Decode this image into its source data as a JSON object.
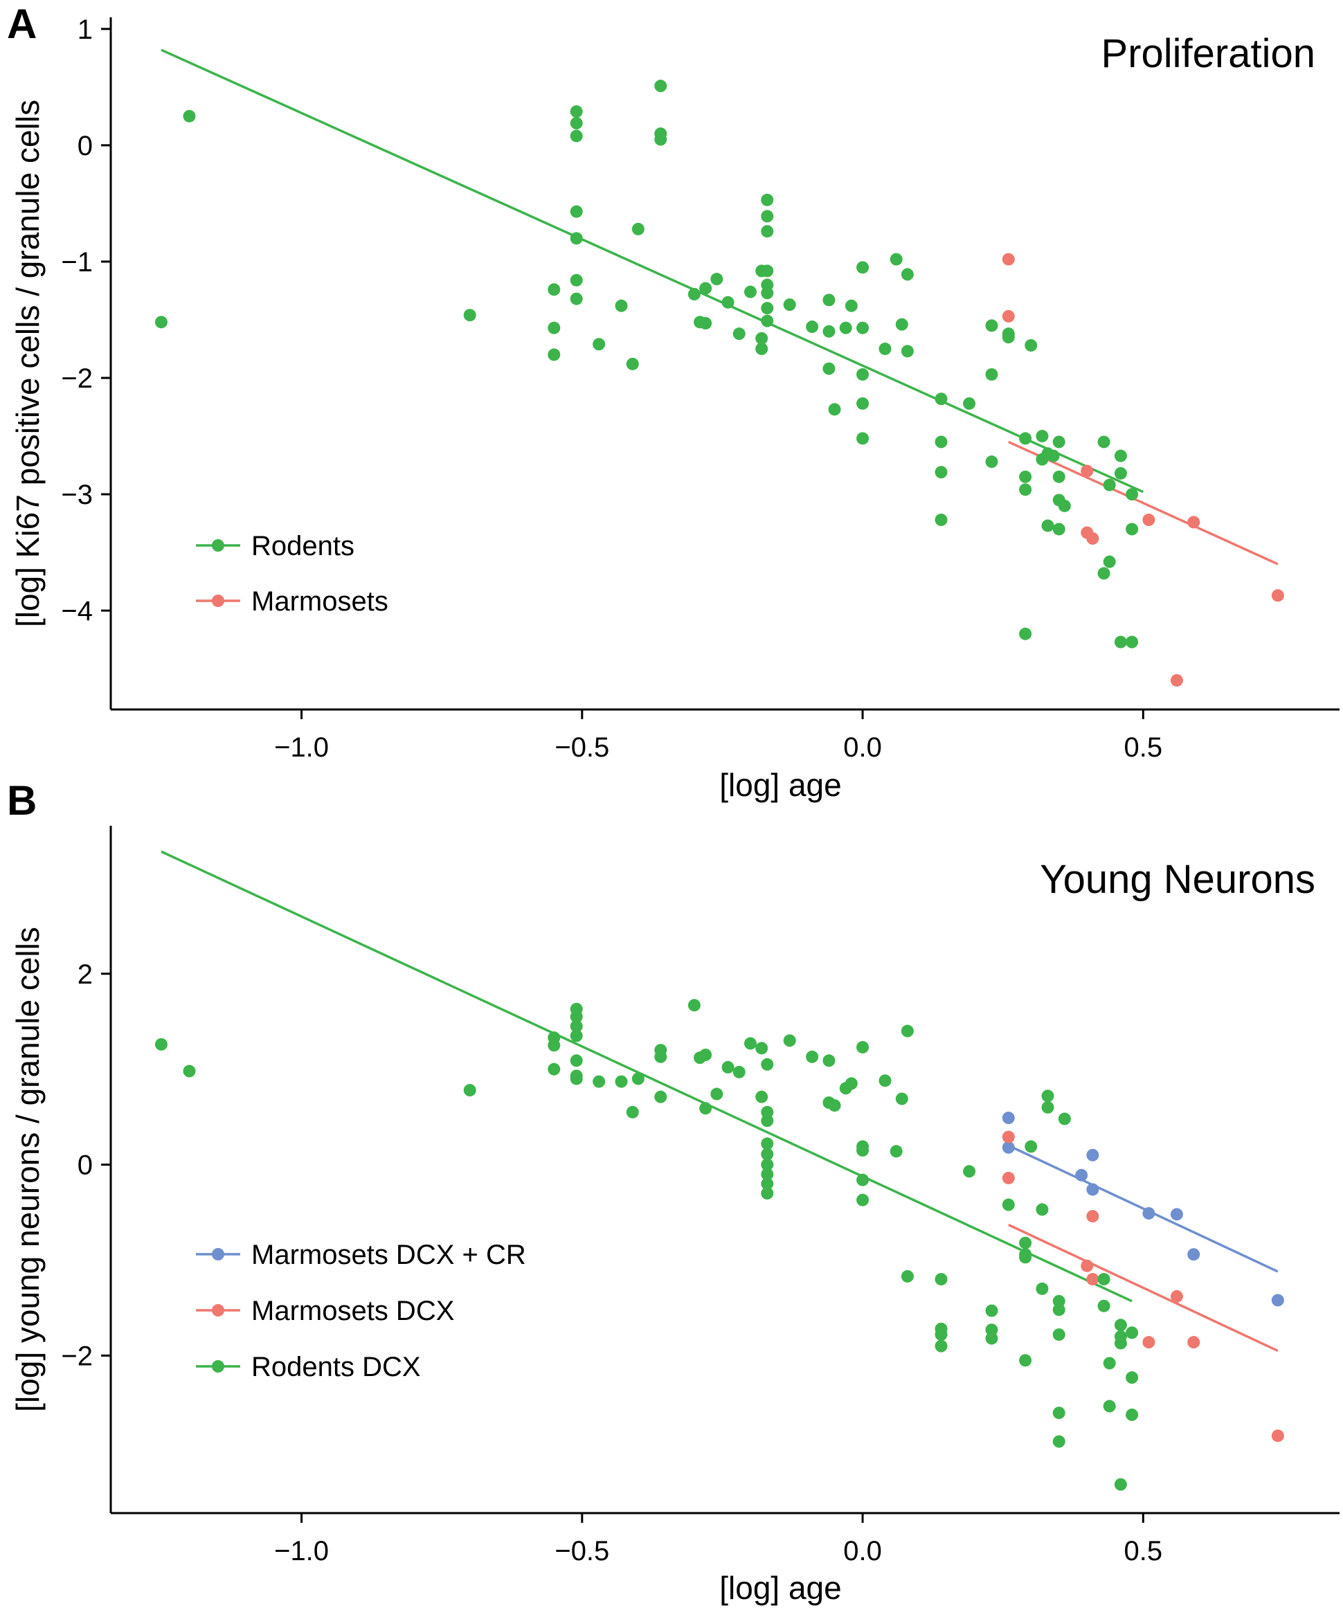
{
  "colors": {
    "rodents": "#3cb44b",
    "marmosets": "#ef776e",
    "marmosets_cr": "#6f8fcf",
    "axis": "#000000"
  },
  "chart_data": [
    {
      "type": "scatter",
      "panel_letter": "A",
      "title": "Proliferation",
      "xlabel": "[log] age",
      "ylabel": "[log] Ki67 positive cells / granule cells",
      "xlim": [
        -1.34,
        0.85
      ],
      "ylim": [
        -4.85,
        1.1
      ],
      "xticks": [
        -1.0,
        -0.5,
        0.0,
        0.5
      ],
      "xtick_labels": [
        "−1.0",
        "−0.5",
        "0.0",
        "0.5"
      ],
      "yticks": [
        1,
        0,
        -1,
        -2,
        -3,
        -4
      ],
      "ytick_labels": [
        "1",
        "0",
        "−1",
        "−2",
        "−3",
        "−4"
      ],
      "legend_position": "bottom-left",
      "series": [
        {
          "name": "Rodents",
          "color": "#3cb44b",
          "fit": {
            "x": [
              -1.25,
              0.5
            ],
            "y": [
              0.82,
              -2.98
            ]
          },
          "points": [
            [
              -1.25,
              -1.52
            ],
            [
              -1.2,
              0.25
            ],
            [
              -0.7,
              -1.46
            ],
            [
              -0.55,
              -1.24
            ],
            [
              -0.55,
              -1.57
            ],
            [
              -0.55,
              -1.8
            ],
            [
              -0.51,
              0.29
            ],
            [
              -0.51,
              0.19
            ],
            [
              -0.51,
              0.08
            ],
            [
              -0.51,
              -0.57
            ],
            [
              -0.51,
              -0.8
            ],
            [
              -0.51,
              -1.16
            ],
            [
              -0.51,
              -1.32
            ],
            [
              -0.47,
              -1.71
            ],
            [
              -0.43,
              -1.38
            ],
            [
              -0.41,
              -1.88
            ],
            [
              -0.4,
              -0.72
            ],
            [
              -0.36,
              0.51
            ],
            [
              -0.36,
              0.1
            ],
            [
              -0.36,
              0.05
            ],
            [
              -0.3,
              -1.28
            ],
            [
              -0.29,
              -1.52
            ],
            [
              -0.28,
              -1.53
            ],
            [
              -0.28,
              -1.23
            ],
            [
              -0.26,
              -1.15
            ],
            [
              -0.24,
              -1.35
            ],
            [
              -0.22,
              -1.62
            ],
            [
              -0.2,
              -1.26
            ],
            [
              -0.18,
              -1.08
            ],
            [
              -0.18,
              -1.66
            ],
            [
              -0.18,
              -1.75
            ],
            [
              -0.17,
              -0.47
            ],
            [
              -0.17,
              -0.61
            ],
            [
              -0.17,
              -0.74
            ],
            [
              -0.17,
              -1.08
            ],
            [
              -0.17,
              -1.2
            ],
            [
              -0.17,
              -1.27
            ],
            [
              -0.17,
              -1.4
            ],
            [
              -0.17,
              -1.51
            ],
            [
              -0.13,
              -1.37
            ],
            [
              -0.09,
              -1.56
            ],
            [
              -0.06,
              -1.33
            ],
            [
              -0.06,
              -1.6
            ],
            [
              -0.06,
              -1.92
            ],
            [
              -0.05,
              -2.27
            ],
            [
              -0.03,
              -1.57
            ],
            [
              -0.02,
              -1.38
            ],
            [
              0.0,
              -1.05
            ],
            [
              0.0,
              -1.57
            ],
            [
              0.0,
              -1.97
            ],
            [
              0.0,
              -2.22
            ],
            [
              0.0,
              -2.52
            ],
            [
              0.04,
              -1.75
            ],
            [
              0.06,
              -0.98
            ],
            [
              0.07,
              -1.54
            ],
            [
              0.08,
              -1.77
            ],
            [
              0.08,
              -1.11
            ],
            [
              0.14,
              -2.18
            ],
            [
              0.14,
              -2.55
            ],
            [
              0.14,
              -2.81
            ],
            [
              0.14,
              -3.22
            ],
            [
              0.19,
              -2.22
            ],
            [
              0.23,
              -1.55
            ],
            [
              0.23,
              -1.97
            ],
            [
              0.23,
              -2.72
            ],
            [
              0.26,
              -1.62
            ],
            [
              0.26,
              -1.65
            ],
            [
              0.29,
              -2.52
            ],
            [
              0.29,
              -2.85
            ],
            [
              0.29,
              -2.96
            ],
            [
              0.29,
              -4.2
            ],
            [
              0.3,
              -1.72
            ],
            [
              0.32,
              -2.5
            ],
            [
              0.32,
              -2.7
            ],
            [
              0.33,
              -3.27
            ],
            [
              0.33,
              -2.65
            ],
            [
              0.34,
              -2.67
            ],
            [
              0.35,
              -2.55
            ],
            [
              0.35,
              -2.85
            ],
            [
              0.35,
              -3.05
            ],
            [
              0.35,
              -3.3
            ],
            [
              0.36,
              -3.1
            ],
            [
              0.43,
              -2.55
            ],
            [
              0.43,
              -3.68
            ],
            [
              0.44,
              -3.58
            ],
            [
              0.44,
              -2.92
            ],
            [
              0.46,
              -2.67
            ],
            [
              0.46,
              -2.82
            ],
            [
              0.46,
              -4.27
            ],
            [
              0.48,
              -3.0
            ],
            [
              0.48,
              -3.3
            ],
            [
              0.48,
              -4.27
            ]
          ]
        },
        {
          "name": "Marmosets",
          "color": "#ef776e",
          "fit": {
            "x": [
              0.26,
              0.74
            ],
            "y": [
              -2.55,
              -3.6
            ]
          },
          "points": [
            [
              0.26,
              -0.98
            ],
            [
              0.26,
              -1.47
            ],
            [
              0.4,
              -2.8
            ],
            [
              0.4,
              -3.33
            ],
            [
              0.41,
              -3.38
            ],
            [
              0.51,
              -3.22
            ],
            [
              0.59,
              -3.24
            ],
            [
              0.56,
              -4.6
            ],
            [
              0.74,
              -3.87
            ]
          ]
        }
      ]
    },
    {
      "type": "scatter",
      "panel_letter": "B",
      "title": "Young Neurons",
      "xlabel": "[log] age",
      "ylabel": "[log] young neurons / granule cells",
      "xlim": [
        -1.34,
        0.85
      ],
      "ylim": [
        -3.65,
        3.55
      ],
      "xticks": [
        -1.0,
        -0.5,
        0.0,
        0.5
      ],
      "xtick_labels": [
        "−1.0",
        "−0.5",
        "0.0",
        "0.5"
      ],
      "yticks": [
        2,
        0,
        -2
      ],
      "ytick_labels": [
        "2",
        "0",
        "−2"
      ],
      "legend_position": "bottom-left",
      "series": [
        {
          "name": "Marmosets DCX + CR",
          "color": "#6f8fcf",
          "fit": {
            "x": [
              0.26,
              0.74
            ],
            "y": [
              0.2,
              -1.12
            ]
          },
          "points": [
            [
              0.26,
              0.49
            ],
            [
              0.26,
              0.18
            ],
            [
              0.39,
              -0.11
            ],
            [
              0.41,
              0.1
            ],
            [
              0.41,
              -0.26
            ],
            [
              0.51,
              -0.51
            ],
            [
              0.56,
              -0.52
            ],
            [
              0.59,
              -0.94
            ],
            [
              0.74,
              -1.42
            ]
          ]
        },
        {
          "name": "Marmosets DCX",
          "color": "#ef776e",
          "fit": {
            "x": [
              0.26,
              0.74
            ],
            "y": [
              -0.63,
              -1.95
            ]
          },
          "points": [
            [
              0.26,
              0.29
            ],
            [
              0.26,
              -0.14
            ],
            [
              0.4,
              -1.06
            ],
            [
              0.41,
              -1.2
            ],
            [
              0.41,
              -0.54
            ],
            [
              0.51,
              -1.86
            ],
            [
              0.56,
              -1.38
            ],
            [
              0.59,
              -1.86
            ],
            [
              0.74,
              -2.84
            ]
          ]
        },
        {
          "name": "Rodents DCX",
          "color": "#3cb44b",
          "fit": {
            "x": [
              -1.25,
              0.48
            ],
            "y": [
              3.28,
              -1.43
            ]
          },
          "points": [
            [
              -1.25,
              1.26
            ],
            [
              -1.2,
              0.98
            ],
            [
              -0.7,
              0.78
            ],
            [
              -0.55,
              1.33
            ],
            [
              -0.55,
              1.25
            ],
            [
              -0.55,
              1.0
            ],
            [
              -0.51,
              1.63
            ],
            [
              -0.51,
              1.55
            ],
            [
              -0.51,
              1.45
            ],
            [
              -0.51,
              1.35
            ],
            [
              -0.51,
              1.09
            ],
            [
              -0.51,
              0.93
            ],
            [
              -0.51,
              0.9
            ],
            [
              -0.47,
              0.87
            ],
            [
              -0.43,
              0.87
            ],
            [
              -0.41,
              0.55
            ],
            [
              -0.4,
              0.9
            ],
            [
              -0.36,
              1.2
            ],
            [
              -0.36,
              1.13
            ],
            [
              -0.36,
              0.71
            ],
            [
              -0.3,
              1.67
            ],
            [
              -0.29,
              1.12
            ],
            [
              -0.28,
              1.15
            ],
            [
              -0.28,
              0.59
            ],
            [
              -0.26,
              0.74
            ],
            [
              -0.24,
              1.02
            ],
            [
              -0.22,
              0.97
            ],
            [
              -0.2,
              1.27
            ],
            [
              -0.18,
              1.22
            ],
            [
              -0.18,
              0.71
            ],
            [
              -0.17,
              0.55
            ],
            [
              -0.17,
              0.46
            ],
            [
              -0.17,
              0.22
            ],
            [
              -0.17,
              0.11
            ],
            [
              -0.17,
              0.0
            ],
            [
              -0.17,
              -0.1
            ],
            [
              -0.17,
              -0.2
            ],
            [
              -0.17,
              -0.3
            ],
            [
              -0.17,
              1.05
            ],
            [
              -0.13,
              1.3
            ],
            [
              -0.09,
              1.13
            ],
            [
              -0.06,
              1.09
            ],
            [
              -0.06,
              0.65
            ],
            [
              -0.05,
              0.62
            ],
            [
              -0.03,
              0.8
            ],
            [
              -0.02,
              0.85
            ],
            [
              0.0,
              1.23
            ],
            [
              0.0,
              0.19
            ],
            [
              0.0,
              0.15
            ],
            [
              0.0,
              -0.16
            ],
            [
              0.0,
              -0.37
            ],
            [
              0.04,
              0.88
            ],
            [
              0.06,
              0.14
            ],
            [
              0.07,
              0.69
            ],
            [
              0.08,
              1.4
            ],
            [
              0.08,
              -1.17
            ],
            [
              0.14,
              -1.2
            ],
            [
              0.14,
              -1.72
            ],
            [
              0.14,
              -1.78
            ],
            [
              0.14,
              -1.9
            ],
            [
              0.19,
              -0.07
            ],
            [
              0.23,
              -1.53
            ],
            [
              0.23,
              -1.73
            ],
            [
              0.23,
              -1.82
            ],
            [
              0.26,
              -0.42
            ],
            [
              0.29,
              -0.82
            ],
            [
              0.29,
              -0.94
            ],
            [
              0.29,
              -0.97
            ],
            [
              0.29,
              -2.05
            ],
            [
              0.3,
              0.19
            ],
            [
              0.32,
              -0.47
            ],
            [
              0.32,
              -1.3
            ],
            [
              0.33,
              0.72
            ],
            [
              0.33,
              0.6
            ],
            [
              0.35,
              -1.43
            ],
            [
              0.35,
              -1.52
            ],
            [
              0.35,
              -1.78
            ],
            [
              0.35,
              -2.6
            ],
            [
              0.35,
              -2.9
            ],
            [
              0.36,
              0.48
            ],
            [
              0.43,
              -1.2
            ],
            [
              0.43,
              -1.48
            ],
            [
              0.44,
              -2.08
            ],
            [
              0.44,
              -2.53
            ],
            [
              0.46,
              -1.68
            ],
            [
              0.46,
              -1.8
            ],
            [
              0.46,
              -1.87
            ],
            [
              0.46,
              -3.35
            ],
            [
              0.48,
              -1.76
            ],
            [
              0.48,
              -2.23
            ],
            [
              0.48,
              -2.62
            ]
          ]
        }
      ]
    }
  ]
}
